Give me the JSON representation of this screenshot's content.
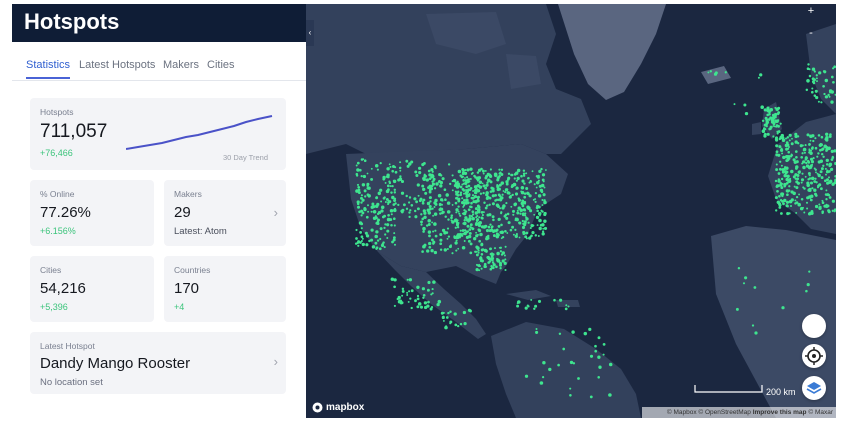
{
  "sidebar": {
    "title": "Hotspots",
    "tabs": [
      {
        "label": "Statistics",
        "active": true
      },
      {
        "label": "Latest Hotspots"
      },
      {
        "label": "Makers"
      },
      {
        "label": "Cities"
      }
    ],
    "hotspots": {
      "label": "Hotspots",
      "value": "711,057",
      "delta": "+76,466",
      "trend_label": "30 Day Trend"
    },
    "online": {
      "label": "% Online",
      "value": "77.26%",
      "delta": "+6.156%"
    },
    "makers": {
      "label": "Makers",
      "value": "29",
      "sub": "Latest: Atom"
    },
    "cities": {
      "label": "Cities",
      "value": "54,216",
      "delta": "+5,396"
    },
    "countries": {
      "label": "Countries",
      "value": "170",
      "delta": "+4"
    },
    "latest": {
      "label": "Latest Hotspot",
      "name": "Dandy Mango Rooster",
      "location": "No location set"
    }
  },
  "map": {
    "zoom_in": "+",
    "zoom_out": "-",
    "scale_label": "200 km",
    "logo": "mapbox",
    "attribution": {
      "part1": "© Mapbox © OpenStreetMap",
      "improve": "Improve this map",
      "part2": "© Maxar"
    }
  },
  "colors": {
    "header_bg": "#0f1d36",
    "accent": "#4a63d6",
    "positive": "#3cc47c",
    "hotspot_dot": "#3ee58f",
    "map_ocean": "#1b2740",
    "map_land": "#34425d"
  }
}
